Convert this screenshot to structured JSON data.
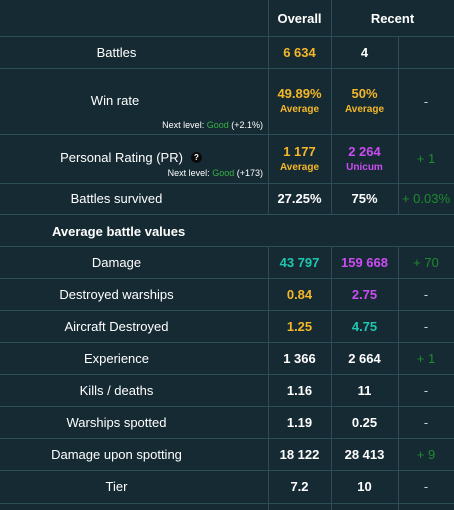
{
  "header": {
    "overall": "Overall",
    "recent": "Recent"
  },
  "colors": {
    "background": "#162a33",
    "grid_line": "#2f4d59",
    "average": "#f4b728",
    "good": "#36b245",
    "unicum": "#cc4cf3",
    "great": "#1fc7b0",
    "delta_positive": "#1f8a2e",
    "white": "#ffffff"
  },
  "rows": {
    "battles": {
      "label": "Battles",
      "overall": "6 634",
      "recent": "4"
    },
    "winrate": {
      "label": "Win rate",
      "overall": "49.89%",
      "overall_rating": "Average",
      "recent": "50%",
      "recent_rating": "Average",
      "change": "-",
      "next_prefix": "Next level: ",
      "next_level": "Good",
      "next_delta": " (+2.1%)"
    },
    "pr": {
      "label": "Personal Rating (PR)",
      "help_icon": "question-mark-circle",
      "help_glyph": "?",
      "overall": "1 177",
      "overall_rating": "Average",
      "recent": "2 264",
      "recent_rating": "Unicum",
      "change": "+ 1",
      "next_prefix": "Next level: ",
      "next_level": "Good",
      "next_delta": " (+173)"
    },
    "survived": {
      "label": "Battles survived",
      "overall": "27.25%",
      "recent": "75%",
      "change": "+ 0.03%"
    },
    "section_title": "Average battle values",
    "damage": {
      "label": "Damage",
      "overall": "43 797",
      "recent": "159 668",
      "change": "+ 70"
    },
    "warships": {
      "label": "Destroyed warships",
      "overall": "0.84",
      "recent": "2.75",
      "change": "-"
    },
    "aircraft": {
      "label": "Aircraft Destroyed",
      "overall": "1.25",
      "recent": "4.75",
      "change": "-"
    },
    "experience": {
      "label": "Experience",
      "overall": "1 366",
      "recent": "2 664",
      "change": "+ 1"
    },
    "kd": {
      "label": "Kills / deaths",
      "overall": "1.16",
      "recent": "11",
      "change": "-"
    },
    "spotted": {
      "label": "Warships spotted",
      "overall": "1.19",
      "recent": "0.25",
      "change": "-"
    },
    "spotdmg": {
      "label": "Damage upon spotting",
      "overall": "18 122",
      "recent": "28 413",
      "change": "+ 9"
    },
    "tier": {
      "label": "Tier",
      "overall": "7.2",
      "recent": "10",
      "change": "-"
    }
  }
}
